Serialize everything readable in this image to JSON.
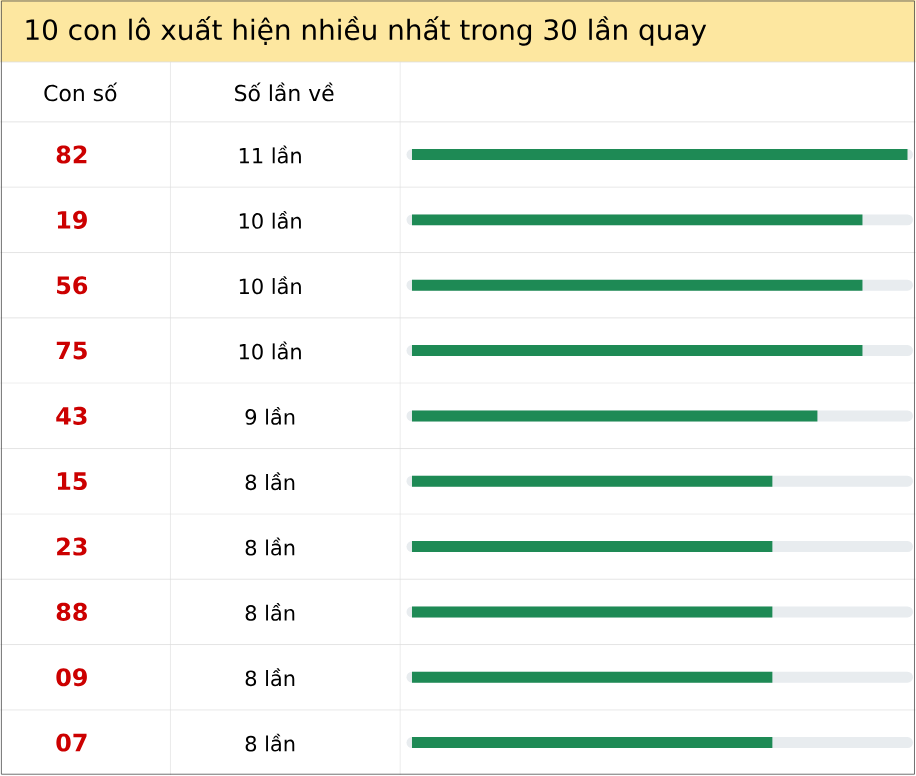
{
  "chart_data": {
    "type": "bar",
    "orientation": "horizontal",
    "title": "10 con lô xuất hiện nhiều nhất trong 30 lần quay",
    "ylabel": "Con số",
    "annotations": [
      "Số lần về"
    ],
    "categories": [
      "82",
      "19",
      "56",
      "75",
      "43",
      "15",
      "23",
      "88",
      "09",
      "07"
    ],
    "values": [
      11,
      10,
      10,
      10,
      9,
      8,
      8,
      8,
      8,
      8
    ],
    "value_labels": [
      "11 lần",
      "10 lần",
      "10 lần",
      "10 lần",
      "9 lần",
      "8 lần",
      "8 lần",
      "8 lần",
      "8 lần",
      "8 lần"
    ],
    "color": "#1e8a55",
    "xlim": [
      0,
      11
    ],
    "tick_labels": "y",
    "grid": true
  }
}
